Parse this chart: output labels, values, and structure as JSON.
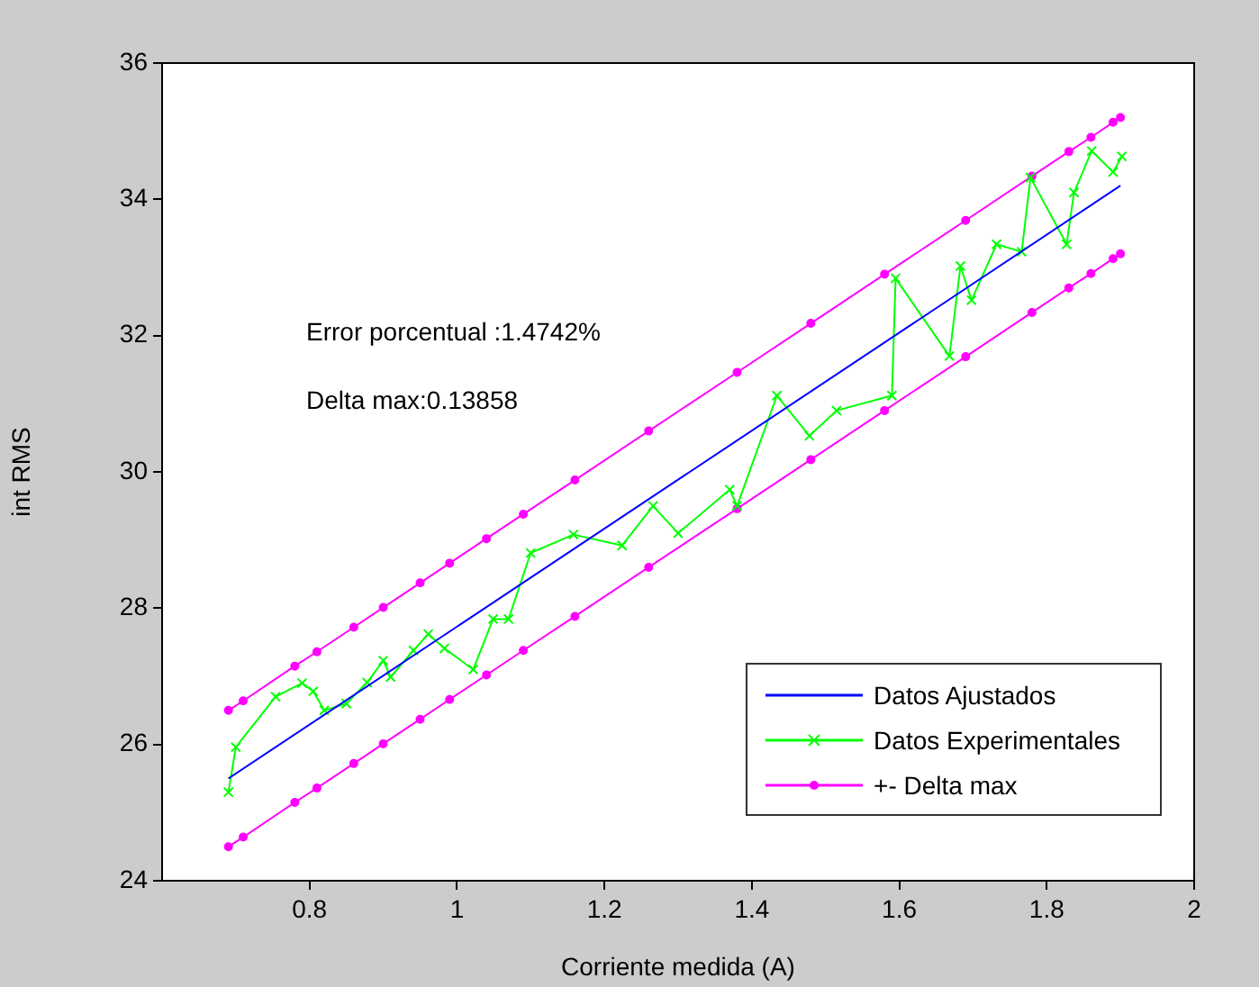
{
  "chart_data": {
    "type": "line",
    "xlabel": "Corriente medida (A)",
    "ylabel": "int RMS",
    "xlim": [
      0.6,
      2
    ],
    "xticks": [
      0.8,
      1,
      1.2,
      1.4,
      1.6,
      1.8,
      2
    ],
    "ylim": [
      24,
      36
    ],
    "yticks": [
      24,
      26,
      28,
      30,
      32,
      34,
      36
    ],
    "grid": false,
    "legend": "bottom right",
    "annotations": [
      "Error porcentual :1.4742%",
      "Delta max:0.13858"
    ],
    "series": [
      {
        "name": "Datos Ajustados",
        "color": "#0000ff",
        "marker": "none",
        "x": [
          0.69,
          1.9
        ],
        "values": [
          25.5,
          34.2
        ]
      },
      {
        "name": "Datos Experimentales",
        "color": "#00ff00",
        "marker": "cross",
        "x": [
          0.69,
          0.7,
          0.754,
          0.79,
          0.805,
          0.82,
          0.85,
          0.878,
          0.9,
          0.91,
          0.941,
          0.961,
          0.983,
          1.022,
          1.049,
          1.07,
          1.1,
          1.158,
          1.224,
          1.266,
          1.3,
          1.37,
          1.38,
          1.434,
          1.478,
          1.515,
          1.59,
          1.595,
          1.668,
          1.683,
          1.698,
          1.732,
          1.766,
          1.778,
          1.827,
          1.837,
          1.861,
          1.89,
          1.902
        ],
        "values": [
          25.3,
          25.96,
          26.7,
          26.9,
          26.78,
          26.5,
          26.6,
          26.91,
          27.23,
          26.99,
          27.38,
          27.62,
          27.41,
          27.1,
          27.84,
          27.84,
          28.81,
          29.08,
          28.92,
          29.5,
          29.1,
          29.74,
          29.5,
          31.12,
          30.53,
          30.9,
          31.12,
          32.84,
          31.7,
          33.02,
          32.52,
          33.34,
          33.23,
          34.32,
          33.34,
          34.1,
          34.71,
          34.4,
          34.63
        ]
      },
      {
        "name": "+- Delta max",
        "color": "#ff00ff",
        "marker": "circle",
        "x": [
          0.69,
          0.71,
          0.78,
          0.81,
          0.86,
          0.9,
          0.95,
          0.99,
          1.04,
          1.09,
          1.16,
          1.26,
          1.38,
          1.48,
          1.58,
          1.69,
          1.78,
          1.83,
          1.86,
          1.89,
          1.9
        ],
        "values": [
          26.5,
          26.64,
          27.15,
          27.36,
          27.72,
          28.01,
          28.37,
          28.66,
          29.02,
          29.38,
          29.88,
          30.6,
          31.46,
          32.18,
          32.9,
          33.69,
          34.34,
          34.7,
          34.91,
          35.13,
          35.2
        ]
      },
      {
        "color": "#ff00ff",
        "marker": "circle",
        "x": [
          0.69,
          0.71,
          0.78,
          0.81,
          0.86,
          0.9,
          0.95,
          0.99,
          1.04,
          1.09,
          1.16,
          1.26,
          1.38,
          1.48,
          1.58,
          1.69,
          1.78,
          1.83,
          1.86,
          1.89,
          1.9
        ],
        "values": [
          24.5,
          24.64,
          25.15,
          25.36,
          25.72,
          26.01,
          26.37,
          26.66,
          27.02,
          27.38,
          27.88,
          28.6,
          29.46,
          30.18,
          30.9,
          31.69,
          32.34,
          32.7,
          32.91,
          33.13,
          33.2
        ]
      }
    ]
  }
}
